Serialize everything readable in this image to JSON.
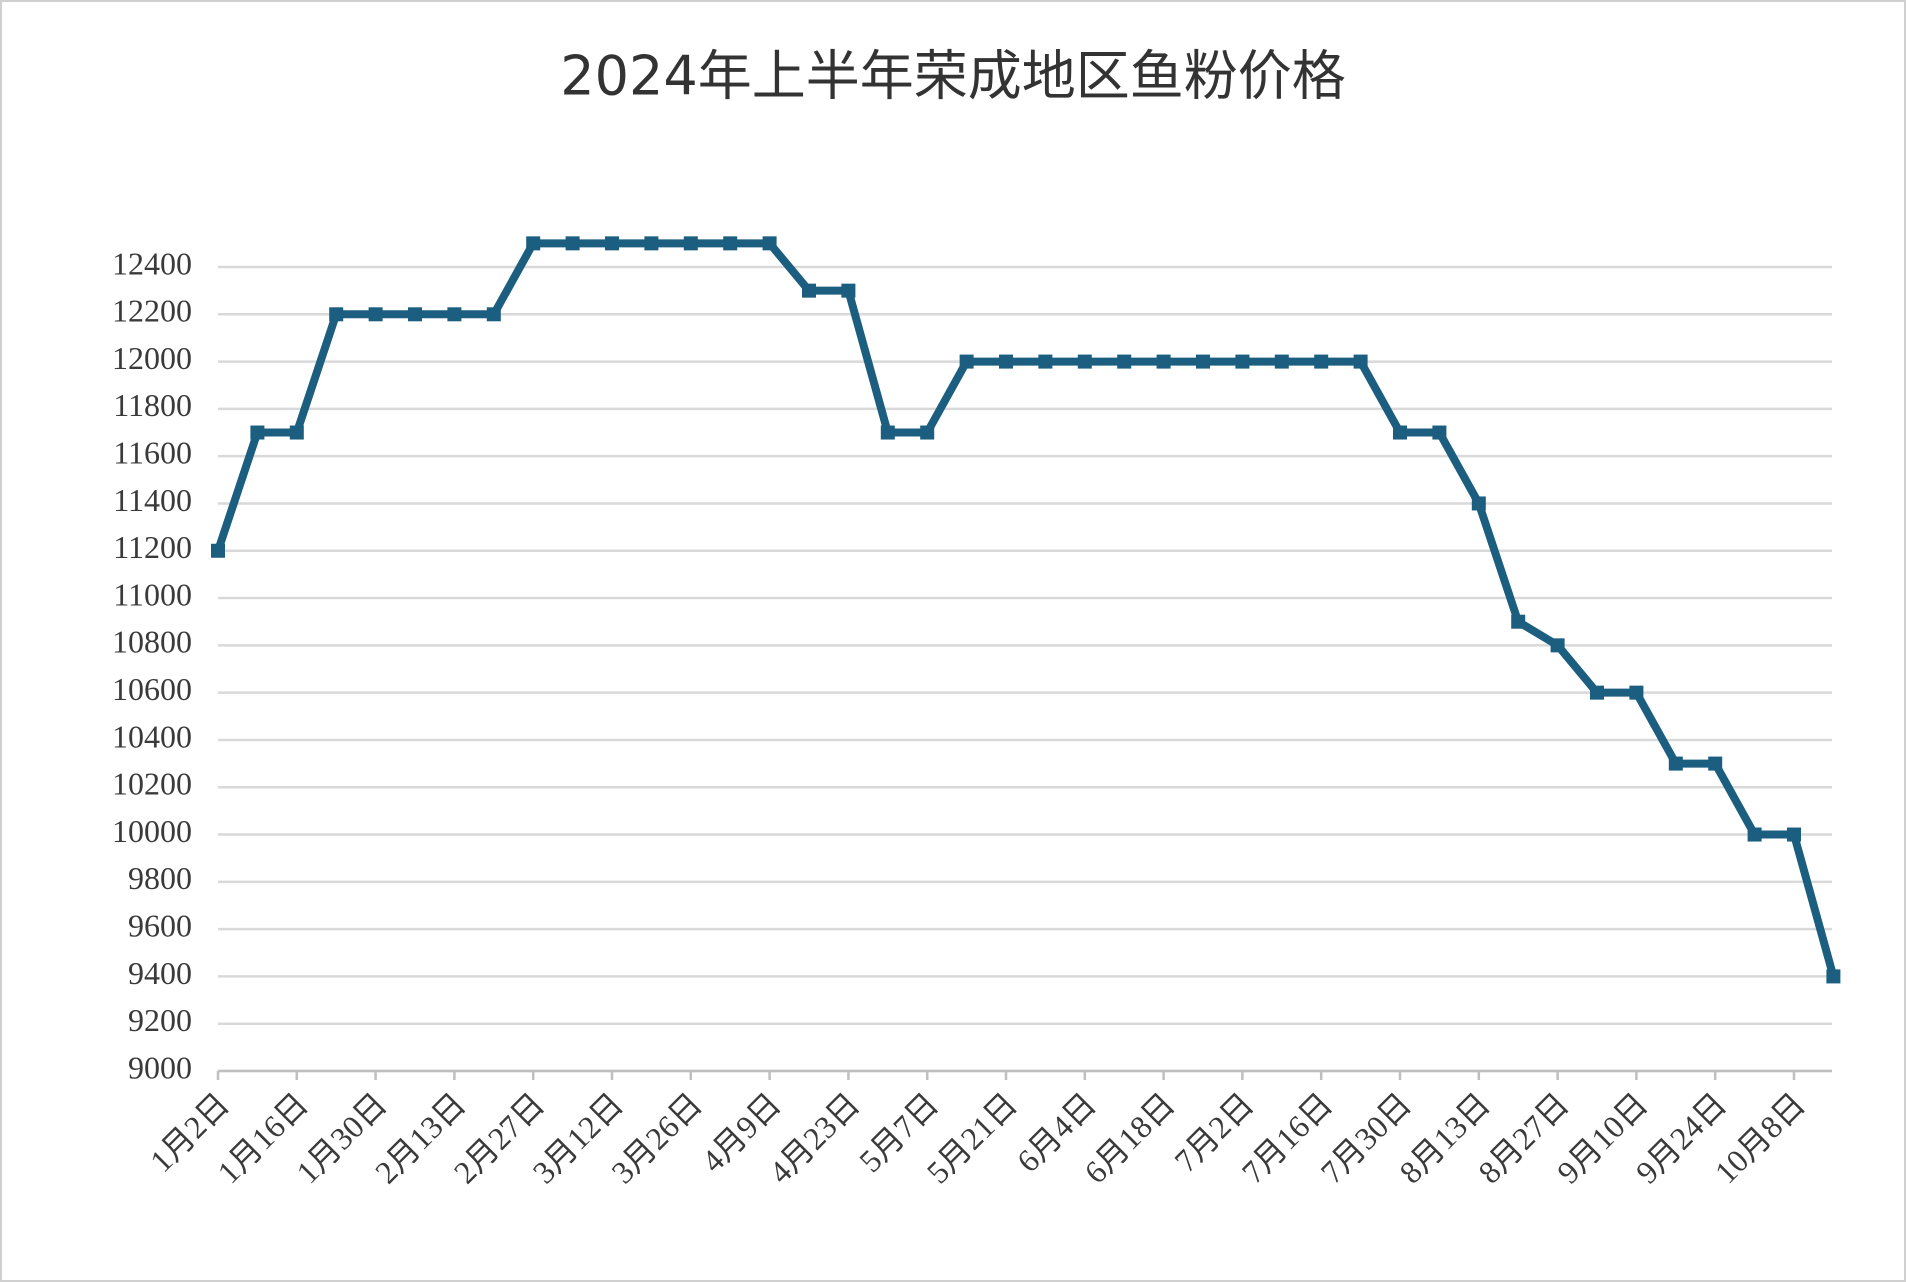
{
  "chart_data": {
    "type": "line",
    "title": "2024年上半年荣成地区鱼粉价格",
    "categories": [
      "1月2日",
      null,
      "1月16日",
      null,
      "1月30日",
      null,
      "2月13日",
      null,
      "2月27日",
      null,
      "3月12日",
      null,
      "3月26日",
      null,
      "4月9日",
      null,
      "4月23日",
      null,
      "5月7日",
      null,
      "5月21日",
      null,
      "6月4日",
      null,
      "6月18日",
      null,
      "7月2日",
      null,
      "7月16日",
      null,
      "7月30日",
      null,
      "8月13日",
      null,
      "8月27日",
      null,
      "9月10日",
      null,
      "9月24日",
      null,
      "10月8日",
      null
    ],
    "series": [
      {
        "name": "鱼粉价格",
        "color": "#1b5e80",
        "values": [
          11200,
          11700,
          11700,
          12200,
          12200,
          12200,
          12200,
          12200,
          12500,
          12500,
          12500,
          12500,
          12500,
          12500,
          12500,
          12300,
          12300,
          11700,
          11700,
          12000,
          12000,
          12000,
          12000,
          12000,
          12000,
          12000,
          12000,
          12000,
          12000,
          12000,
          11700,
          11700,
          11400,
          10900,
          10800,
          10600,
          10600,
          10300,
          10300,
          10000,
          10000,
          9400
        ]
      }
    ],
    "ylim": [
      9000,
      12400
    ],
    "yticks": [
      9000,
      9200,
      9400,
      9600,
      9800,
      10000,
      10200,
      10400,
      10600,
      10800,
      11000,
      11200,
      11400,
      11600,
      11800,
      12000,
      12200,
      12400
    ],
    "grid": true
  }
}
